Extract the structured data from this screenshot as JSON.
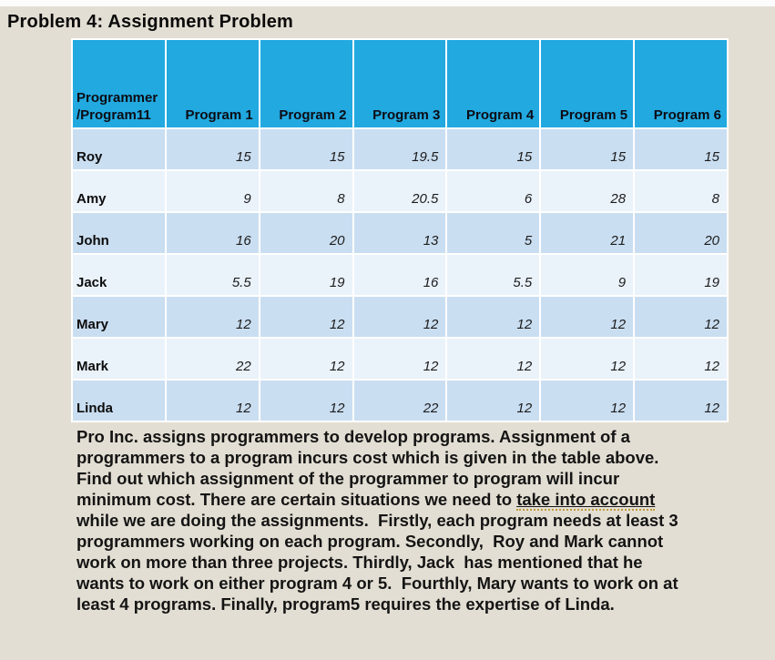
{
  "page": {
    "title": "Problem 4: Assignment Problem"
  },
  "table": {
    "corner_header_line1": "Programmer",
    "corner_header_line2": "/Program11",
    "columns": [
      "Program 1",
      "Program 2",
      "Program 3",
      "Program 4",
      "Program 5",
      "Program 6"
    ],
    "rows": [
      {
        "name": "Roy",
        "values": [
          "15",
          "15",
          "19.5",
          "15",
          "15",
          "15"
        ]
      },
      {
        "name": "Amy",
        "values": [
          "9",
          "8",
          "20.5",
          "6",
          "28",
          "8"
        ]
      },
      {
        "name": "John",
        "values": [
          "16",
          "20",
          "13",
          "5",
          "21",
          "20"
        ]
      },
      {
        "name": "Jack",
        "values": [
          "5.5",
          "19",
          "16",
          "5.5",
          "9",
          "19"
        ]
      },
      {
        "name": "Mary",
        "values": [
          "12",
          "12",
          "12",
          "12",
          "12",
          "12"
        ]
      },
      {
        "name": "Mark",
        "values": [
          "22",
          "12",
          "12",
          "12",
          "12",
          "12"
        ]
      },
      {
        "name": "Linda",
        "values": [
          "12",
          "12",
          "22",
          "12",
          "12",
          "12"
        ]
      }
    ]
  },
  "description": {
    "underlined_phrase": "take into account",
    "lines": [
      "Pro Inc. assigns programmers to develop programs. Assignment of a",
      "programmers to a program incurs cost which is given in the table above.",
      "Find out which assignment of the programmer to program will incur",
      "minimum cost. There are certain situations we need to take into account",
      "while we are doing the assignments.  Firstly, each program needs at least 3",
      "programmers working on each program. Secondly,  Roy and Mark cannot",
      "work on more than three projects. Thirdly, Jack  has mentioned that he",
      "wants to work on either program 4 or 5.  Fourthly, Mary wants to work on at",
      "least 4 programs. Finally, program5 requires the expertise of Linda."
    ]
  },
  "colors": {
    "background": "#e3ded3",
    "table_header_fill": "#21a9e0",
    "row_dark": "#cadef1",
    "row_light": "#eaf2fa",
    "gridline": "#ffffff",
    "dotted_underline": "#bf9b3a"
  }
}
